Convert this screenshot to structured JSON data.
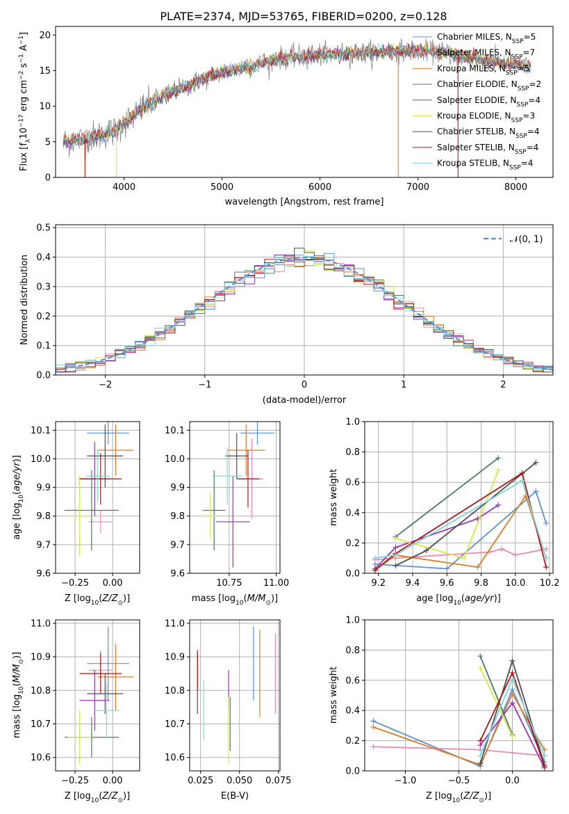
{
  "figure_title": "PLATE=2374, MJD=53765, FIBERID=0200, z=0.128",
  "colors": {
    "chabrier_miles": "#5b8fd6",
    "salpeter_miles": "#e98ab6",
    "kroupa_miles": "#e07b20",
    "chabrier_elodie": "#4a7d5a",
    "salpeter_elodie": "#9e2fb8",
    "kroupa_elodie": "#d7e84a",
    "chabrier_stelib": "#4d4d4d",
    "salpeter_stelib": "#b01515",
    "kroupa_stelib": "#7ed6dc",
    "gaussian": "#5b8fd6",
    "grid": "#b0b0b0"
  },
  "chart_data": [
    {
      "id": "spectrum",
      "type": "line",
      "title": "PLATE=2374, MJD=53765, FIBERID=0200, z=0.128",
      "xlabel": "wavelength [Angstrom, rest frame]",
      "ylabel": "Flux [f_λ 10^-17 erg cm^-2 s^-1 A^-1]",
      "xlim": [
        3300,
        8380
      ],
      "ylim": [
        0,
        21.2
      ],
      "xticks": [
        4000,
        5000,
        6000,
        7000,
        8000
      ],
      "yticks": [
        0,
        5,
        10,
        15,
        20
      ],
      "grid": false,
      "legend_position": "top-right",
      "data_trend": [
        [
          3380,
          5.0
        ],
        [
          3600,
          5.4
        ],
        [
          3900,
          6.5
        ],
        [
          4200,
          9.8
        ],
        [
          4400,
          11.5
        ],
        [
          4800,
          13.8
        ],
        [
          5000,
          14.8
        ],
        [
          5300,
          15.6
        ],
        [
          5600,
          16.8
        ],
        [
          6000,
          17.2
        ],
        [
          6200,
          17.3
        ],
        [
          6500,
          17.6
        ],
        [
          6800,
          17.8
        ],
        [
          7000,
          17.8
        ],
        [
          7300,
          17.5
        ],
        [
          7600,
          16.6
        ],
        [
          8000,
          15.8
        ],
        [
          8150,
          15.6
        ]
      ],
      "legend": [
        {
          "label": "Chabrier MILES, N",
          "sub": "SSP",
          "eq": "=5"
        },
        {
          "label": "Salpeter MILES, N",
          "sub": "SSP",
          "eq": "=7"
        },
        {
          "label": "Kroupa MILES, N",
          "sub": "SSP",
          "eq": "=5"
        },
        {
          "label": "Chabrier ELODIE, N",
          "sub": "SSP",
          "eq": "=2"
        },
        {
          "label": "Salpeter ELODIE, N",
          "sub": "SSP",
          "eq": "=4"
        },
        {
          "label": "Kroupa ELODIE, N",
          "sub": "SSP",
          "eq": "=3"
        },
        {
          "label": "Chabrier STELIB, N",
          "sub": "SSP",
          "eq": "=4"
        },
        {
          "label": "Salpeter STELIB, N",
          "sub": "SSP",
          "eq": "=4"
        },
        {
          "label": "Kroupa STELIB, N",
          "sub": "SSP",
          "eq": "=4"
        }
      ]
    },
    {
      "id": "residuals",
      "type": "histogram",
      "xlabel": "(data-model)/error",
      "ylabel": "Normed distribution",
      "xlim": [
        -2.5,
        2.5
      ],
      "ylim": [
        0,
        0.51
      ],
      "xticks": [
        -2,
        -1,
        0,
        1,
        2
      ],
      "yticks": [
        0.0,
        0.1,
        0.2,
        0.3,
        0.4,
        0.5
      ],
      "grid": true,
      "bin_width": 0.1,
      "legend_position": "top-right",
      "legend_label": "𝒩(0, 1)",
      "gaussian": {
        "mu": 0,
        "sigma": 1
      }
    },
    {
      "id": "age_vs_Z",
      "type": "scatter",
      "xlabel": "Z [log10(Z/Z⊙)]",
      "ylabel": "age [log10(age/yr)]",
      "xlim": [
        -0.38,
        0.18
      ],
      "ylim": [
        9.6,
        10.13
      ],
      "xticks": [
        -0.25,
        0.0
      ],
      "yticks": [
        9.6,
        9.7,
        9.8,
        9.9,
        10.0,
        10.1
      ],
      "points": [
        {
          "model": "chabrier_miles",
          "x": -0.03,
          "xerr": 0.14,
          "y": 10.09,
          "yerr": 0.04
        },
        {
          "model": "salpeter_miles",
          "x": -0.08,
          "xerr": 0.08,
          "y": 9.78,
          "yerr": 0.04
        },
        {
          "model": "kroupa_miles",
          "x": 0.02,
          "xerr": 0.12,
          "y": 10.03,
          "yerr": 0.09
        },
        {
          "model": "chabrier_elodie",
          "x": -0.14,
          "xerr": 0.18,
          "y": 9.82,
          "yerr": 0.14
        },
        {
          "model": "salpeter_elodie",
          "x": -0.12,
          "xerr": 0.1,
          "y": 9.93,
          "yerr": 0.13
        },
        {
          "model": "kroupa_elodie",
          "x": -0.22,
          "xerr": 0.08,
          "y": 9.8,
          "yerr": 0.14
        },
        {
          "model": "chabrier_stelib",
          "x": -0.05,
          "xerr": 0.12,
          "y": 10.01,
          "yerr": 0.11
        },
        {
          "model": "salpeter_stelib",
          "x": -0.08,
          "xerr": 0.14,
          "y": 9.93,
          "yerr": 0.09
        },
        {
          "model": "kroupa_stelib",
          "x": -0.1,
          "xerr": 0.08,
          "y": 9.94,
          "yerr": 0.09
        }
      ]
    },
    {
      "id": "age_vs_mass",
      "type": "scatter",
      "xlabel": "mass [log10(M/M⊙)]",
      "ylabel": "",
      "xlim": [
        10.54,
        11.02
      ],
      "ylim": [
        9.6,
        10.13
      ],
      "xticks": [
        10.75,
        11.0
      ],
      "yticks": [
        9.6,
        9.7,
        9.8,
        9.9,
        10.0,
        10.1
      ],
      "points": [
        {
          "model": "chabrier_miles",
          "x": 10.9,
          "xerr": 0.09,
          "y": 10.09,
          "yerr": 0.04
        },
        {
          "model": "salpeter_miles",
          "x": 10.87,
          "xerr": 0.06,
          "y": 9.93,
          "yerr": 0.14
        },
        {
          "model": "kroupa_miles",
          "x": 10.84,
          "xerr": 0.1,
          "y": 10.03,
          "yerr": 0.09
        },
        {
          "model": "chabrier_elodie",
          "x": 10.67,
          "xerr": 0.06,
          "y": 9.82,
          "yerr": 0.14
        },
        {
          "model": "salpeter_elodie",
          "x": 10.77,
          "xerr": 0.09,
          "y": 9.78,
          "yerr": 0.16
        },
        {
          "model": "kroupa_elodie",
          "x": 10.65,
          "xerr": 0.04,
          "y": 9.8,
          "yerr": 0.08
        },
        {
          "model": "chabrier_stelib",
          "x": 10.79,
          "xerr": 0.06,
          "y": 10.01,
          "yerr": 0.08
        },
        {
          "model": "salpeter_stelib",
          "x": 10.85,
          "xerr": 0.06,
          "y": 9.93,
          "yerr": 0.1
        },
        {
          "model": "kroupa_stelib",
          "x": 10.74,
          "xerr": 0.08,
          "y": 9.94,
          "yerr": 0.1
        }
      ]
    },
    {
      "id": "weight_vs_age",
      "type": "line",
      "xlabel": "age [log10(age/yr)]",
      "ylabel": "mass weight",
      "xlim": [
        9.12,
        10.22
      ],
      "ylim": [
        0.0,
        1.0
      ],
      "xticks": [
        9.2,
        9.4,
        9.6,
        9.8,
        10.0,
        10.2
      ],
      "yticks": [
        0.0,
        0.2,
        0.4,
        0.6,
        0.8,
        1.0
      ],
      "grid": true,
      "series": [
        {
          "model": "chabrier_miles",
          "x": [
            9.18,
            9.6,
            10.12,
            10.18
          ],
          "y": [
            0.06,
            0.03,
            0.54,
            0.33
          ]
        },
        {
          "model": "salpeter_miles",
          "x": [
            9.18,
            9.3,
            9.85,
            9.92,
            10.0,
            10.18
          ],
          "y": [
            0.09,
            0.1,
            0.14,
            0.16,
            0.12,
            0.16
          ]
        },
        {
          "model": "kroupa_miles",
          "x": [
            9.18,
            9.3,
            9.78,
            10.06,
            10.18
          ],
          "y": [
            0.02,
            0.12,
            0.04,
            0.51,
            0.1
          ]
        },
        {
          "model": "chabrier_elodie",
          "x": [
            9.3,
            9.9
          ],
          "y": [
            0.24,
            0.76
          ]
        },
        {
          "model": "salpeter_elodie",
          "x": [
            9.18,
            9.3,
            9.78,
            9.9
          ],
          "y": [
            0.03,
            0.17,
            0.36,
            0.45
          ]
        },
        {
          "model": "kroupa_elodie",
          "x": [
            9.3,
            9.7,
            9.9
          ],
          "y": [
            0.23,
            0.1,
            0.68
          ]
        },
        {
          "model": "chabrier_stelib",
          "x": [
            9.3,
            9.48,
            10.12
          ],
          "y": [
            0.05,
            0.15,
            0.73
          ]
        },
        {
          "model": "salpeter_stelib",
          "x": [
            9.18,
            9.3,
            10.04,
            10.18
          ],
          "y": [
            0.02,
            0.13,
            0.66,
            0.04
          ]
        },
        {
          "model": "kroupa_stelib",
          "x": [
            9.18,
            9.3,
            10.04,
            10.18
          ],
          "y": [
            0.1,
            0.12,
            0.61,
            0.1
          ]
        }
      ]
    },
    {
      "id": "mass_vs_Z",
      "type": "scatter",
      "xlabel": "Z [log10(Z/Z⊙)]",
      "ylabel": "mass [log10(M/M⊙)]",
      "xlim": [
        -0.38,
        0.18
      ],
      "ylim": [
        10.56,
        11.01
      ],
      "xticks": [
        -0.25,
        0.0
      ],
      "yticks": [
        10.6,
        10.7,
        10.8,
        10.9,
        11.0
      ],
      "points": [
        {
          "model": "chabrier_miles",
          "x": -0.03,
          "xerr": 0.14,
          "y": 10.88,
          "yerr": 0.11
        },
        {
          "model": "salpeter_miles",
          "x": -0.08,
          "xerr": 0.08,
          "y": 10.86,
          "yerr": 0.06
        },
        {
          "model": "kroupa_miles",
          "x": 0.02,
          "xerr": 0.12,
          "y": 10.84,
          "yerr": 0.1
        },
        {
          "model": "chabrier_elodie",
          "x": -0.14,
          "xerr": 0.18,
          "y": 10.66,
          "yerr": 0.06
        },
        {
          "model": "salpeter_elodie",
          "x": -0.12,
          "xerr": 0.1,
          "y": 10.77,
          "yerr": 0.09
        },
        {
          "model": "kroupa_elodie",
          "x": -0.22,
          "xerr": 0.08,
          "y": 10.66,
          "yerr": 0.08
        },
        {
          "model": "chabrier_stelib",
          "x": -0.05,
          "xerr": 0.12,
          "y": 10.79,
          "yerr": 0.06
        },
        {
          "model": "salpeter_stelib",
          "x": -0.08,
          "xerr": 0.14,
          "y": 10.85,
          "yerr": 0.06
        },
        {
          "model": "kroupa_stelib",
          "x": -0.04,
          "xerr": 0.08,
          "y": 10.74,
          "yerr": 0.08
        }
      ]
    },
    {
      "id": "mass_vs_ebv",
      "type": "scatter",
      "xlabel": "E(B-V)",
      "ylabel": "",
      "xlim": [
        0.018,
        0.076
      ],
      "ylim": [
        10.56,
        11.01
      ],
      "xticks": [
        0.025,
        0.05,
        0.075
      ],
      "yticks": [
        10.6,
        10.7,
        10.8,
        10.9,
        11.0
      ],
      "points": [
        {
          "model": "chabrier_miles",
          "x": 0.059,
          "y": 10.88,
          "yerr": 0.11
        },
        {
          "model": "salpeter_miles",
          "x": 0.073,
          "y": 10.85,
          "yerr": 0.12
        },
        {
          "model": "kroupa_miles",
          "x": 0.063,
          "y": 10.85,
          "yerr": 0.13
        },
        {
          "model": "chabrier_elodie",
          "x": 0.044,
          "y": 10.7,
          "yerr": 0.08
        },
        {
          "model": "salpeter_elodie",
          "x": 0.043,
          "y": 10.8,
          "yerr": 0.06
        },
        {
          "model": "kroupa_elodie",
          "x": 0.043,
          "y": 10.68,
          "yerr": 0.1
        },
        {
          "model": "chabrier_stelib",
          "x": 0.023,
          "y": 10.82,
          "yerr": 0.09
        },
        {
          "model": "salpeter_stelib",
          "x": 0.023,
          "y": 10.86,
          "yerr": 0.06
        },
        {
          "model": "kroupa_stelib",
          "x": 0.027,
          "y": 10.74,
          "yerr": 0.09
        }
      ]
    },
    {
      "id": "weight_vs_Z",
      "type": "line",
      "xlabel": "Z [log10(Z/Z⊙)]",
      "ylabel": "mass weight",
      "xlim": [
        -1.38,
        0.38
      ],
      "ylim": [
        0.0,
        1.0
      ],
      "xticks": [
        -1.0,
        -0.5,
        0.0
      ],
      "yticks": [
        0.0,
        0.2,
        0.4,
        0.6,
        0.8,
        1.0
      ],
      "grid": true,
      "series": [
        {
          "model": "chabrier_miles",
          "x": [
            -1.3,
            -0.3,
            0.0,
            0.3
          ],
          "y": [
            0.33,
            0.03,
            0.54,
            0.06
          ]
        },
        {
          "model": "salpeter_miles",
          "x": [
            -1.3,
            -0.3,
            0.0,
            0.3
          ],
          "y": [
            0.16,
            0.14,
            0.12,
            0.1
          ]
        },
        {
          "model": "kroupa_miles",
          "x": [
            -1.3,
            -0.3,
            0.0,
            0.3
          ],
          "y": [
            0.29,
            0.04,
            0.51,
            0.14
          ]
        },
        {
          "model": "chabrier_elodie",
          "x": [
            -0.3,
            0.0
          ],
          "y": [
            0.76,
            0.24
          ]
        },
        {
          "model": "salpeter_elodie",
          "x": [
            -0.3,
            0.0,
            0.3
          ],
          "y": [
            0.17,
            0.45,
            0.02
          ]
        },
        {
          "model": "kroupa_elodie",
          "x": [
            -0.3,
            0.0
          ],
          "y": [
            0.68,
            0.23
          ]
        },
        {
          "model": "chabrier_stelib",
          "x": [
            -0.3,
            0.0,
            0.3
          ],
          "y": [
            0.05,
            0.73,
            0.04
          ]
        },
        {
          "model": "salpeter_stelib",
          "x": [
            -0.3,
            0.0,
            0.3
          ],
          "y": [
            0.2,
            0.65,
            0.03
          ]
        },
        {
          "model": "kroupa_stelib",
          "x": [
            -0.3,
            0.0,
            0.3
          ],
          "y": [
            0.1,
            0.61,
            0.1
          ]
        }
      ]
    }
  ]
}
